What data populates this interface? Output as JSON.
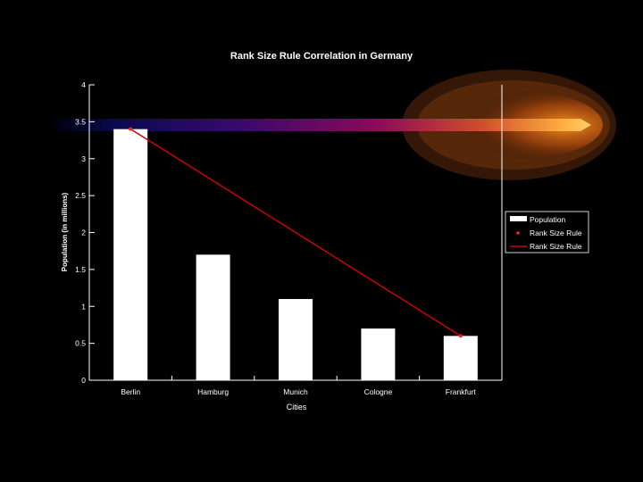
{
  "chart_data": {
    "type": "bar",
    "title": "Rank Size Rule Correlation in Germany",
    "xlabel": "Cities",
    "ylabel": "Population (in millions)",
    "categories": [
      "Berlin",
      "Hamburg",
      "Munich",
      "Cologne",
      "Frankfurt"
    ],
    "ylim": [
      0,
      4
    ],
    "yticks": [
      "0",
      "0.5",
      "1",
      "1.5",
      "2",
      "2.5",
      "3",
      "3.5",
      "4"
    ],
    "grid": false,
    "legend_position": "right",
    "series": [
      {
        "name": "Population",
        "type": "bar",
        "values": [
          3.4,
          1.7,
          1.1,
          0.7,
          0.6
        ],
        "color": "#ffffff"
      },
      {
        "name": "Rank Size Rule",
        "type": "marker",
        "values": [
          3.4,
          null,
          null,
          null,
          0.6
        ],
        "color": "#ff2020"
      },
      {
        "name": "Rank Size Rule",
        "type": "line",
        "values": [
          3.4,
          null,
          null,
          null,
          0.6
        ],
        "color": "#cc0000"
      }
    ]
  }
}
